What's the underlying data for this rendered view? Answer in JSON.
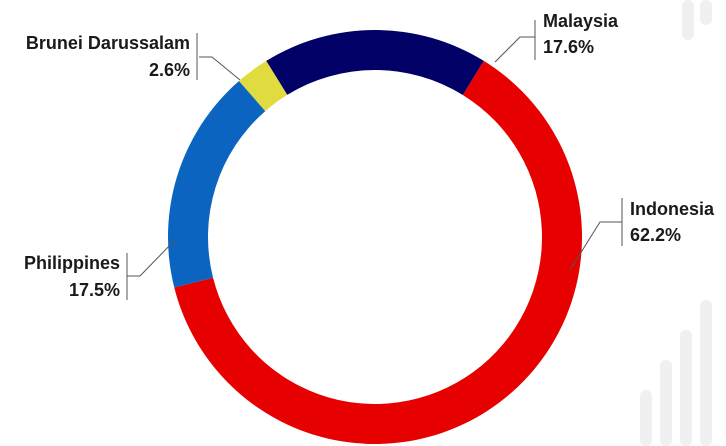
{
  "chart_data": {
    "type": "donut",
    "categories": [
      "Malaysia",
      "Indonesia",
      "Philippines",
      "Brunei Darussalam"
    ],
    "values": [
      17.6,
      62.2,
      17.5,
      2.6
    ],
    "value_labels": [
      "17.6%",
      "62.2%",
      "17.5%",
      "2.6%"
    ],
    "colors": [
      "#000066",
      "#e60000",
      "#0a64c0",
      "#e0dc40"
    ]
  }
}
